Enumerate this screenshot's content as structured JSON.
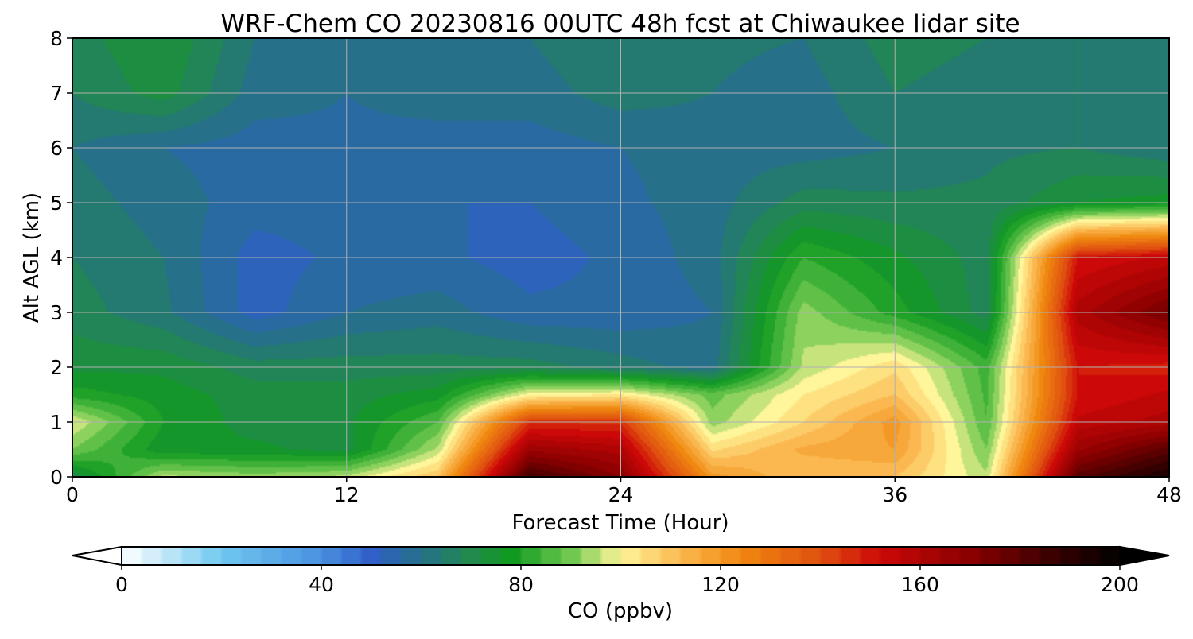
{
  "chart_data": {
    "type": "heatmap",
    "title": "WRF-Chem CO  20230816 00UTC 48h fcst at Chiwaukee lidar site",
    "xlabel": "Forecast Time (Hour)",
    "ylabel": "Alt AGL (km)",
    "xlim": [
      0,
      48
    ],
    "ylim": [
      0,
      8
    ],
    "xticks": [
      0,
      12,
      24,
      36,
      48
    ],
    "yticks": [
      0,
      1,
      2,
      3,
      4,
      5,
      6,
      7,
      8
    ],
    "grid": true,
    "x": [
      0,
      4,
      8,
      12,
      16,
      20,
      24,
      28,
      32,
      36,
      40,
      44,
      48
    ],
    "y": [
      0,
      0.5,
      1,
      1.5,
      2,
      3,
      4,
      5,
      6,
      7,
      8
    ],
    "z": [
      [
        70,
        95,
        92,
        95,
        110,
        185,
        170,
        120,
        110,
        110,
        95,
        180,
        195
      ],
      [
        90,
        75,
        75,
        72,
        95,
        165,
        160,
        105,
        115,
        118,
        90,
        165,
        180
      ],
      [
        98,
        78,
        72,
        73,
        86,
        145,
        145,
        92,
        106,
        120,
        86,
        155,
        160
      ],
      [
        80,
        76,
        72,
        72,
        76,
        100,
        102,
        88,
        102,
        110,
        85,
        150,
        155
      ],
      [
        73,
        73,
        68,
        68,
        68,
        68,
        64,
        60,
        95,
        105,
        84,
        150,
        148
      ],
      [
        68,
        63,
        52,
        58,
        60,
        55,
        55,
        58,
        92,
        80,
        68,
        160,
        175
      ],
      [
        66,
        62,
        52,
        55,
        55,
        52,
        55,
        60,
        82,
        75,
        68,
        150,
        155
      ],
      [
        64,
        60,
        56,
        56,
        54,
        54,
        57,
        60,
        68,
        67,
        67,
        74,
        76
      ],
      [
        62,
        58,
        56,
        57,
        56,
        56,
        58,
        60,
        60,
        62,
        65,
        66,
        63
      ],
      [
        66,
        72,
        60,
        58,
        60,
        60,
        64,
        62,
        60,
        66,
        64,
        66,
        63
      ],
      [
        68,
        74,
        62,
        60,
        62,
        62,
        66,
        63,
        62,
        68,
        66,
        66,
        64
      ]
    ],
    "colorbar": {
      "label": "CO  (ppbv)",
      "ticks": [
        0,
        40,
        80,
        120,
        160,
        200
      ],
      "min": 0,
      "max": 200,
      "extend": "both",
      "colormap": [
        [
          0,
          "#ffffff"
        ],
        [
          20,
          "#70c8f0"
        ],
        [
          40,
          "#4a90e0"
        ],
        [
          50,
          "#3060c8"
        ],
        [
          60,
          "#26708a"
        ],
        [
          70,
          "#218a4c"
        ],
        [
          78,
          "#109a20"
        ],
        [
          90,
          "#70c850"
        ],
        [
          100,
          "#fff59a"
        ],
        [
          112,
          "#fbb850"
        ],
        [
          124,
          "#f08810"
        ],
        [
          140,
          "#e05010"
        ],
        [
          152,
          "#cc0808"
        ],
        [
          170,
          "#8a0000"
        ],
        [
          185,
          "#400000"
        ],
        [
          200,
          "#000000"
        ]
      ]
    }
  }
}
